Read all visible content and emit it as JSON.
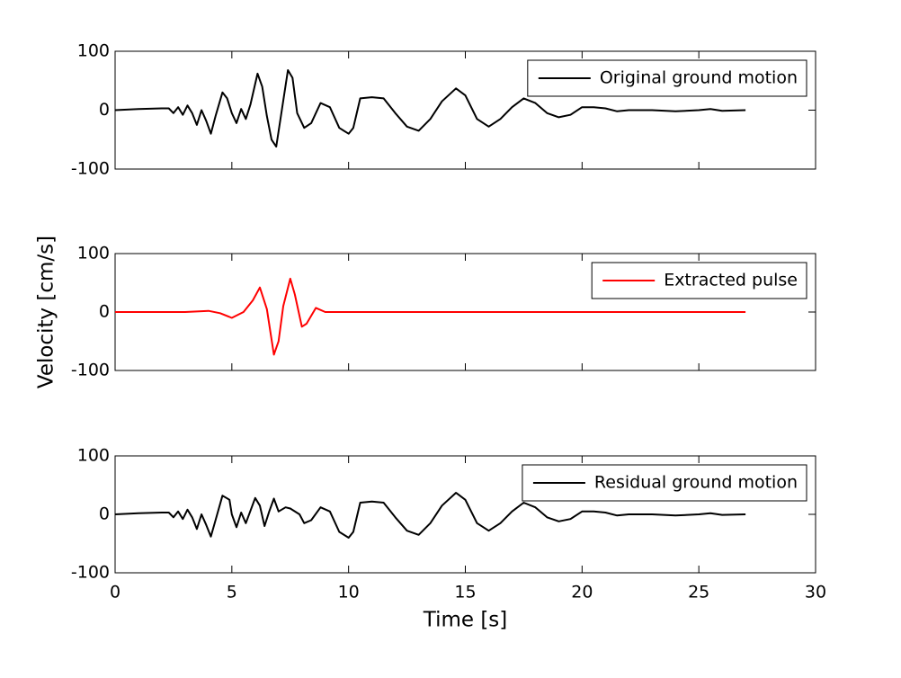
{
  "chart_data": [
    {
      "type": "line",
      "x": [
        0,
        1,
        2,
        2.3,
        2.5,
        2.7,
        2.9,
        3.1,
        3.3,
        3.5,
        3.7,
        3.9,
        4.1,
        4.3,
        4.6,
        4.8,
        5.0,
        5.2,
        5.4,
        5.6,
        5.8,
        6.1,
        6.3,
        6.5,
        6.7,
        6.9,
        7.1,
        7.4,
        7.6,
        7.8,
        8.1,
        8.4,
        8.8,
        9.2,
        9.6,
        10.0,
        10.2,
        10.5,
        11,
        11.5,
        12,
        12.5,
        13,
        13.5,
        14,
        14.6,
        15,
        15.5,
        16,
        16.5,
        17,
        17.5,
        18,
        18.5,
        19,
        19.5,
        20,
        20.5,
        21,
        21.5,
        22,
        23,
        24,
        25,
        25.5,
        26,
        27
      ],
      "series": [
        {
          "name": "Original ground motion",
          "color": "#000000",
          "values": [
            0,
            2,
            3,
            3,
            -5,
            5,
            -8,
            8,
            -5,
            -25,
            0,
            -18,
            -40,
            -10,
            30,
            20,
            -5,
            -22,
            2,
            -15,
            10,
            62,
            40,
            -10,
            -50,
            -62,
            -10,
            68,
            55,
            -5,
            -30,
            -22,
            12,
            5,
            -30,
            -40,
            -30,
            20,
            22,
            20,
            -5,
            -28,
            -35,
            -15,
            15,
            37,
            25,
            -15,
            -28,
            -15,
            5,
            20,
            12,
            -5,
            -12,
            -8,
            5,
            5,
            3,
            -2,
            0,
            0,
            -2,
            0,
            2,
            -1,
            0
          ]
        }
      ],
      "xlim": [
        0,
        30
      ],
      "ylim": [
        -100,
        100
      ],
      "yticks": [
        -100,
        0,
        100
      ],
      "legend": "upper right"
    },
    {
      "type": "line",
      "x": [
        0,
        3,
        4,
        4.5,
        5,
        5.5,
        5.9,
        6.2,
        6.5,
        6.8,
        7.0,
        7.2,
        7.5,
        7.7,
        8.0,
        8.2,
        8.6,
        9,
        10,
        27
      ],
      "series": [
        {
          "name": "Extracted pulse",
          "color": "#ff0000",
          "values": [
            0,
            0,
            2,
            -2,
            -10,
            0,
            20,
            42,
            5,
            -73,
            -50,
            10,
            57,
            30,
            -25,
            -20,
            7,
            0,
            0,
            0
          ]
        }
      ],
      "xlim": [
        0,
        30
      ],
      "ylim": [
        -100,
        100
      ],
      "yticks": [
        -100,
        0,
        100
      ],
      "legend": "upper right",
      "ylabel": "Velocity [cm/s]"
    },
    {
      "type": "line",
      "x": [
        0,
        1,
        2,
        2.3,
        2.5,
        2.7,
        2.9,
        3.1,
        3.3,
        3.5,
        3.7,
        3.9,
        4.1,
        4.3,
        4.6,
        4.9,
        5.0,
        5.2,
        5.4,
        5.6,
        6.0,
        6.2,
        6.4,
        6.6,
        6.8,
        7.0,
        7.3,
        7.5,
        7.9,
        8.1,
        8.4,
        8.8,
        9.2,
        9.6,
        10.0,
        10.2,
        10.5,
        11,
        11.5,
        12,
        12.5,
        13,
        13.5,
        14,
        14.6,
        15,
        15.5,
        16,
        16.5,
        17,
        17.5,
        18,
        18.5,
        19,
        19.5,
        20,
        20.5,
        21,
        21.5,
        22,
        23,
        24,
        25,
        25.5,
        26,
        27
      ],
      "series": [
        {
          "name": "Residual ground motion",
          "color": "#000000",
          "values": [
            0,
            2,
            3,
            3,
            -5,
            5,
            -8,
            8,
            -5,
            -25,
            0,
            -18,
            -38,
            -10,
            32,
            25,
            0,
            -22,
            3,
            -15,
            28,
            15,
            -20,
            5,
            27,
            5,
            12,
            10,
            0,
            -15,
            -10,
            12,
            5,
            -30,
            -40,
            -30,
            20,
            22,
            20,
            -5,
            -28,
            -35,
            -15,
            15,
            37,
            25,
            -15,
            -28,
            -15,
            5,
            20,
            12,
            -5,
            -12,
            -8,
            5,
            5,
            3,
            -2,
            0,
            0,
            -2,
            0,
            2,
            -1,
            0
          ]
        }
      ],
      "xlim": [
        0,
        30
      ],
      "xticks": [
        0,
        5,
        10,
        15,
        20,
        25,
        30
      ],
      "ylim": [
        -100,
        100
      ],
      "yticks": [
        -100,
        0,
        100
      ],
      "legend": "upper right",
      "xlabel": "Time [s]"
    }
  ]
}
